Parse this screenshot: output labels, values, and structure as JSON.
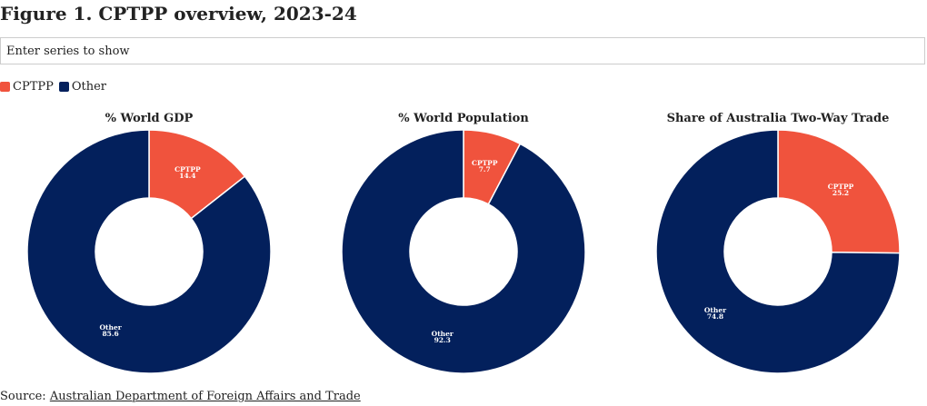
{
  "title": "Figure 1. CPTPP overview, 2023-24",
  "search": {
    "placeholder": "Enter series to show"
  },
  "legend": [
    {
      "label": "CPTPP",
      "color": "#f0533d"
    },
    {
      "label": "Other",
      "color": "#03205c"
    }
  ],
  "source": {
    "prefix": "Source: ",
    "link": "Australian Department of Foreign Affairs and Trade"
  },
  "chart_data": [
    {
      "type": "pie",
      "donut": true,
      "title": "% World GDP",
      "categories": [
        "CPTPP",
        "Other"
      ],
      "values": [
        14.4,
        85.6
      ]
    },
    {
      "type": "pie",
      "donut": true,
      "title": "% World Population",
      "categories": [
        "CPTPP",
        "Other"
      ],
      "values": [
        7.7,
        92.3
      ]
    },
    {
      "type": "pie",
      "donut": true,
      "title": "Share of Australia Two-Way Trade",
      "categories": [
        "CPTPP",
        "Other"
      ],
      "values": [
        25.2,
        74.8
      ]
    }
  ]
}
